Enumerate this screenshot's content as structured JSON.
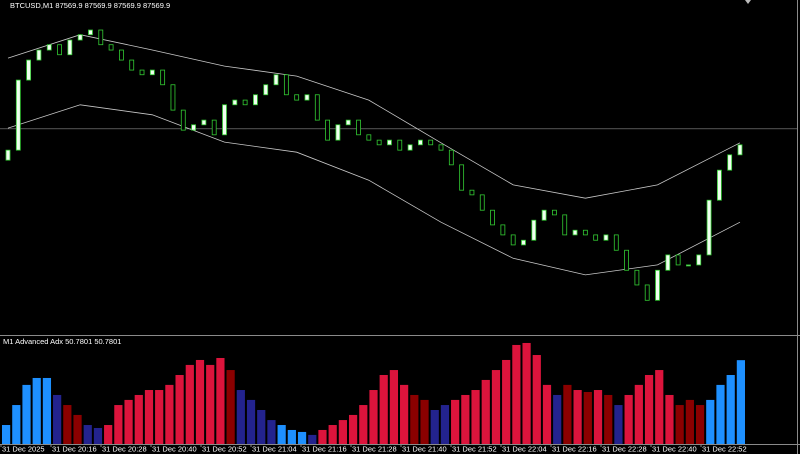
{
  "chart_data": [
    {
      "type": "candlestick",
      "title": "BTCUSD,M1  87569.9 87569.9 87569.9 87569.9",
      "ylim": [
        87248,
        87750
      ],
      "up_color": "#f0fff0",
      "down_color": "#000000",
      "outline_color": "#33cc33",
      "hline": 87557,
      "hline_color": "#8a8a8a",
      "open": [
        87510,
        87525,
        87630,
        87660,
        87675,
        87683,
        87668,
        87690,
        87698,
        87705,
        87683,
        87675,
        87660,
        87645,
        87638,
        87645,
        87623,
        87585,
        87555,
        87563,
        87570,
        87548,
        87593,
        87600,
        87593,
        87608,
        87623,
        87638,
        87608,
        87600,
        87608,
        87570,
        87540,
        87563,
        87570,
        87548,
        87540,
        87533,
        87540,
        87525,
        87533,
        87540,
        87533,
        87525,
        87503,
        87465,
        87458,
        87435,
        87413,
        87398,
        87383,
        87390,
        87420,
        87435,
        87428,
        87398,
        87405,
        87398,
        87390,
        87398,
        87375,
        87345,
        87323,
        87300,
        87345,
        87368,
        87353,
        87353,
        87368,
        87450,
        87495,
        87518
      ],
      "close": [
        87525,
        87630,
        87660,
        87675,
        87683,
        87668,
        87690,
        87698,
        87705,
        87683,
        87675,
        87660,
        87645,
        87638,
        87645,
        87623,
        87585,
        87555,
        87563,
        87570,
        87548,
        87593,
        87600,
        87593,
        87608,
        87623,
        87638,
        87608,
        87600,
        87608,
        87570,
        87540,
        87563,
        87570,
        87548,
        87540,
        87533,
        87540,
        87525,
        87533,
        87540,
        87533,
        87525,
        87503,
        87465,
        87458,
        87435,
        87413,
        87398,
        87383,
        87390,
        87420,
        87435,
        87428,
        87398,
        87405,
        87398,
        87390,
        87398,
        87375,
        87345,
        87323,
        87300,
        87345,
        87368,
        87353,
        87353,
        87368,
        87450,
        87495,
        87518,
        87533
      ],
      "series": [
        {
          "type": "line",
          "color": "#c8c8c8",
          "x": [
            0,
            7,
            14,
            21,
            28,
            35,
            42,
            49,
            56,
            63,
            71
          ],
          "values": [
            87663,
            87698,
            87675,
            87651,
            87636,
            87600,
            87536,
            87473,
            87453,
            87473,
            87536
          ]
        },
        {
          "type": "line",
          "color": "#c8c8c8",
          "x": [
            0,
            7,
            14,
            21,
            28,
            35,
            42,
            49,
            56,
            63,
            71
          ],
          "values": [
            87558,
            87593,
            87578,
            87537,
            87522,
            87480,
            87417,
            87363,
            87338,
            87353,
            87417
          ]
        }
      ]
    },
    {
      "type": "bar",
      "title": "M1 Advanced Adx 50.7801 50.7801",
      "ylim": [
        0,
        63
      ],
      "values": [
        11.5,
        23.6,
        35.8,
        40.0,
        40.0,
        29.7,
        23.6,
        17.6,
        11.5,
        9.7,
        11.5,
        23.6,
        26.7,
        29.7,
        32.7,
        32.7,
        35.8,
        41.8,
        47.9,
        50.9,
        47.9,
        52.1,
        44.8,
        32.7,
        26.7,
        20.6,
        14.5,
        11.5,
        8.5,
        7.3,
        5.5,
        8.5,
        11.5,
        14.5,
        17.6,
        23.6,
        32.7,
        41.8,
        44.8,
        35.8,
        29.7,
        26.7,
        20.6,
        23.6,
        26.7,
        29.7,
        32.7,
        38.8,
        44.8,
        50.9,
        60.0,
        61.2,
        53.9,
        35.8,
        29.7,
        35.8,
        32.7,
        31.5,
        32.7,
        29.7,
        23.6,
        29.7,
        35.8,
        41.8,
        44.8,
        29.7,
        23.6,
        26.7,
        23.6,
        26.7,
        35.8,
        41.8,
        50.78
      ],
      "colors": [
        "#1e90ff",
        "#1e90ff",
        "#1e90ff",
        "#1e90ff",
        "#1e90ff",
        "#23238e",
        "#8b0000",
        "#8b0000",
        "#23238e",
        "#23238e",
        "#dc143c",
        "#dc143c",
        "#dc143c",
        "#dc143c",
        "#dc143c",
        "#dc143c",
        "#dc143c",
        "#dc143c",
        "#dc143c",
        "#dc143c",
        "#dc143c",
        "#dc143c",
        "#8b0000",
        "#23238e",
        "#23238e",
        "#23238e",
        "#23238e",
        "#1e90ff",
        "#1e90ff",
        "#1e90ff",
        "#23238e",
        "#dc143c",
        "#dc143c",
        "#dc143c",
        "#dc143c",
        "#dc143c",
        "#dc143c",
        "#dc143c",
        "#dc143c",
        "#dc143c",
        "#8b0000",
        "#8b0000",
        "#23238e",
        "#23238e",
        "#dc143c",
        "#dc143c",
        "#dc143c",
        "#dc143c",
        "#dc143c",
        "#dc143c",
        "#dc143c",
        "#dc143c",
        "#dc143c",
        "#dc143c",
        "#23238e",
        "#8b0000",
        "#dc143c",
        "#8b0000",
        "#dc143c",
        "#8b0000",
        "#23238e",
        "#dc143c",
        "#dc143c",
        "#dc143c",
        "#dc143c",
        "#dc143c",
        "#8b0000",
        "#8b0000",
        "#8b0000",
        "#1e90ff",
        "#1e90ff",
        "#1e90ff",
        "#1e90ff"
      ],
      "x_labels": [
        "31 Dec 2025",
        "31 Dec 20:16",
        "31 Dec 20:28",
        "31 Dec 20:40",
        "31 Dec 20:52",
        "31 Dec 21:04",
        "31 Dec 21:16",
        "31 Dec 21:28",
        "31 Dec 21:40",
        "31 Dec 21:52",
        "31 Dec 22:04",
        "31 Dec 22:16",
        "31 Dec 22:28",
        "31 Dec 22:40",
        "31 Dec 22:52"
      ]
    }
  ]
}
